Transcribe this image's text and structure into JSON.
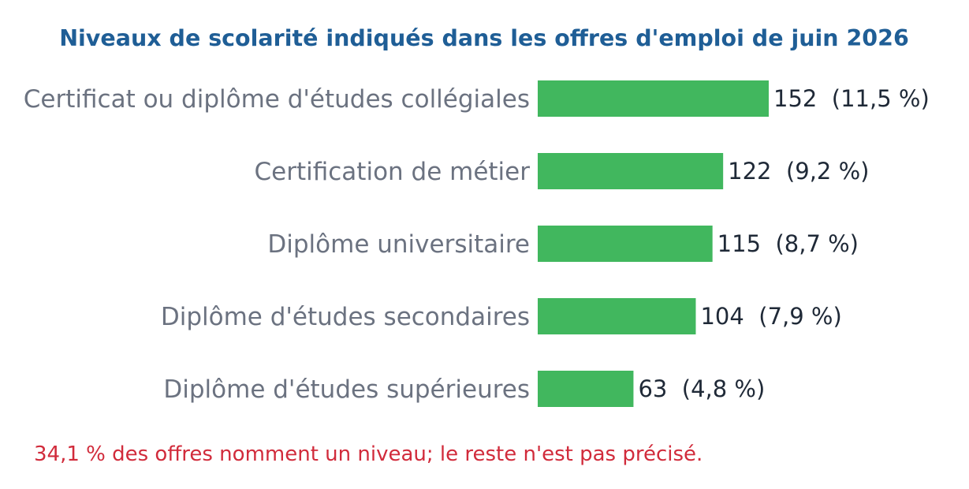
{
  "colors": {
    "title": "#1f5e96",
    "bar": "#41b75e",
    "category_label": "#6b7280",
    "value_label": "#1f2937",
    "note": "#d12b3b"
  },
  "chart_data": {
    "type": "bar",
    "orientation": "horizontal",
    "title": "Niveaux de scolarité indiqués dans les offres d'emploi de juin 2026",
    "categories": [
      "Certificat ou diplôme d'études collégiales",
      "Certification de métier",
      "Diplôme universitaire",
      "Diplôme d'études secondaires",
      "Diplôme d'études supérieures"
    ],
    "values": [
      152,
      122,
      115,
      104,
      63
    ],
    "value_labels": [
      "152  (11,5 %)",
      "122  (9,2 %)",
      "115  (8,7 %)",
      "104  (7,9 %)",
      "63  (4,8 %)"
    ],
    "note": "34,1 % des offres nomment un niveau; le reste n'est pas précisé.",
    "xlim": [
      0,
      152
    ],
    "grid": false,
    "legend": "none"
  }
}
